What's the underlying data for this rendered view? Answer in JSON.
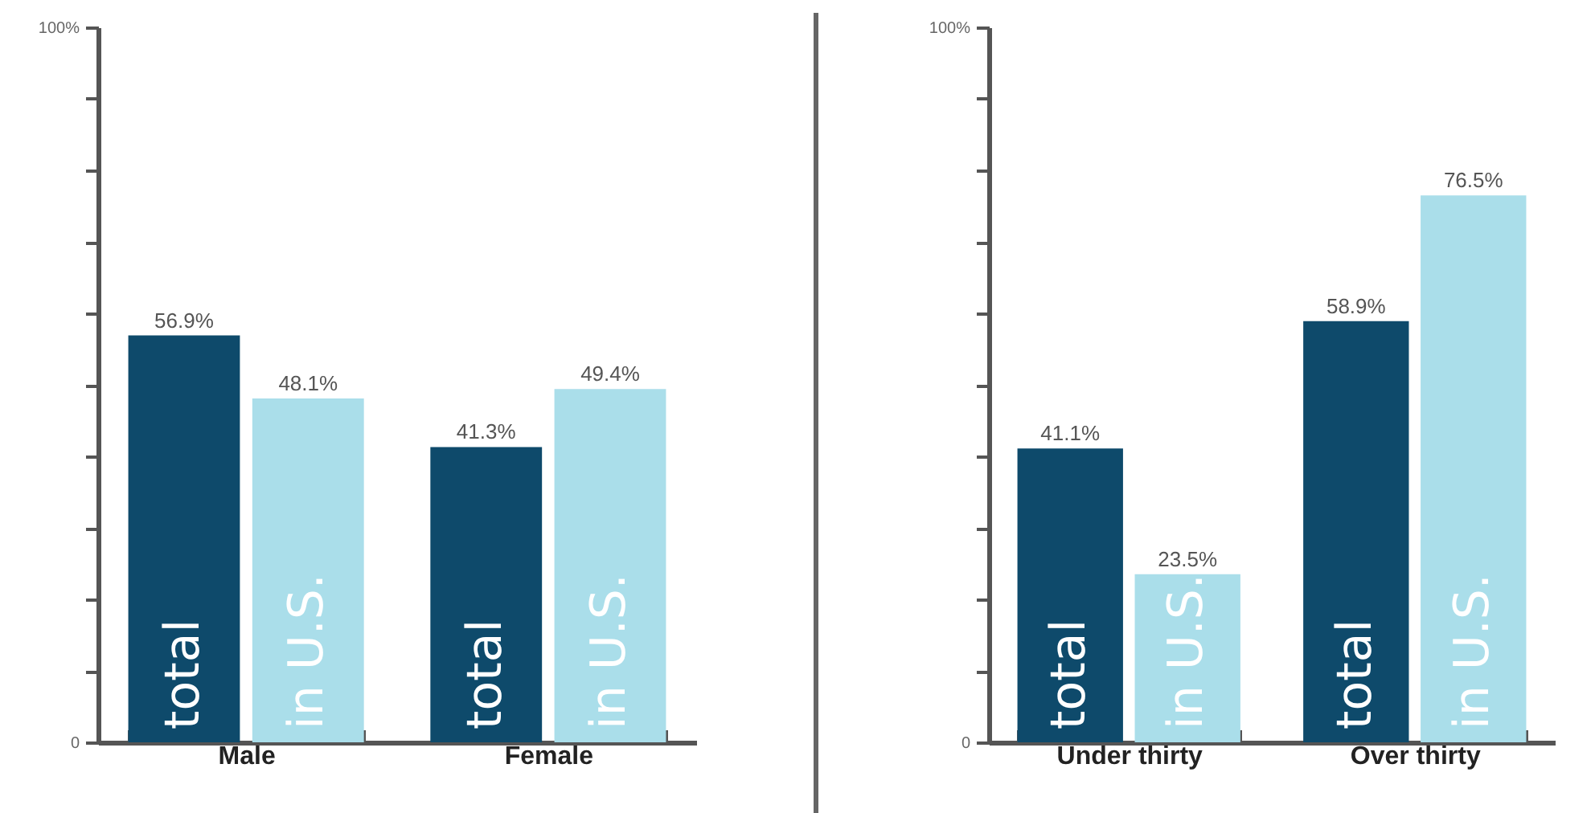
{
  "chart_data": [
    {
      "type": "bar",
      "categories": [
        "Male",
        "Female"
      ],
      "series": [
        {
          "name": "total",
          "color": "#0e4a6b",
          "values": [
            56.9,
            41.3
          ],
          "value_labels": [
            "56.9%",
            "41.3%"
          ]
        },
        {
          "name": "in U.S.",
          "color": "#aadeea",
          "values": [
            48.1,
            49.4
          ],
          "value_labels": [
            "48.1%",
            "49.4%"
          ]
        }
      ],
      "ylim": [
        0,
        100
      ],
      "yticks": [
        0,
        {
          "value": 10,
          "label": null
        },
        {
          "value": 20,
          "label": null
        },
        {
          "value": 30,
          "label": null
        },
        {
          "value": 40,
          "label": null
        },
        {
          "value": 50,
          "label": null
        },
        {
          "value": 60,
          "label": null
        },
        {
          "value": 70,
          "label": null
        },
        {
          "value": 80,
          "label": null
        },
        {
          "value": 90,
          "label": null
        },
        {
          "value": 100,
          "label": "100%"
        }
      ]
    },
    {
      "type": "bar",
      "categories": [
        "Under thirty",
        "Over thirty"
      ],
      "series": [
        {
          "name": "total",
          "color": "#0e4a6b",
          "values": [
            41.1,
            58.9
          ],
          "value_labels": [
            "41.1%",
            "58.9%"
          ]
        },
        {
          "name": "in U.S.",
          "color": "#aadeea",
          "values": [
            23.5,
            76.5
          ],
          "value_labels": [
            "23.5%",
            "76.5%"
          ]
        }
      ],
      "ylim": [
        0,
        100
      ],
      "yticks": [
        0,
        {
          "value": 10,
          "label": null
        },
        {
          "value": 20,
          "label": null
        },
        {
          "value": 30,
          "label": null
        },
        {
          "value": 40,
          "label": null
        },
        {
          "value": 50,
          "label": null
        },
        {
          "value": 60,
          "label": null
        },
        {
          "value": 70,
          "label": null
        },
        {
          "value": 80,
          "label": null
        },
        {
          "value": 90,
          "label": null
        },
        {
          "value": 100,
          "label": "100%"
        }
      ]
    }
  ]
}
